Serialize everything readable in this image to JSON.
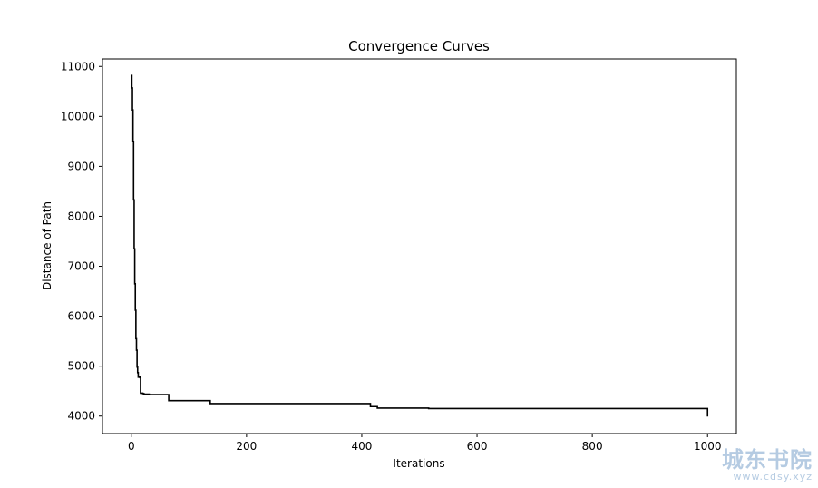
{
  "chart_data": {
    "type": "line",
    "title": "Convergence Curves",
    "xlabel": "Iterations",
    "ylabel": "Distance of Path",
    "xlim": [
      -50,
      1050
    ],
    "ylim": [
      3650,
      11150
    ],
    "xticks": [
      0,
      200,
      400,
      600,
      800,
      1000
    ],
    "yticks": [
      4000,
      5000,
      6000,
      7000,
      8000,
      9000,
      10000,
      11000
    ],
    "grid": false,
    "line_color": "#000000",
    "series": [
      {
        "step": true,
        "x": [
          0,
          1,
          2,
          3,
          4,
          5,
          6,
          7,
          8,
          9,
          10,
          11,
          12,
          13,
          15,
          16,
          20,
          22,
          31,
          65,
          137,
          415,
          427,
          516,
          798,
          1000
        ],
        "y": [
          10820,
          10570,
          10130,
          9500,
          8330,
          7350,
          6650,
          6120,
          5550,
          5320,
          4980,
          4870,
          4780,
          4780,
          4770,
          4460,
          4450,
          4440,
          4430,
          4310,
          4250,
          4190,
          4160,
          4150,
          4150,
          3990
        ]
      }
    ]
  },
  "watermark": {
    "main": "城东书院",
    "sub": "www.cdsy.xyz"
  }
}
